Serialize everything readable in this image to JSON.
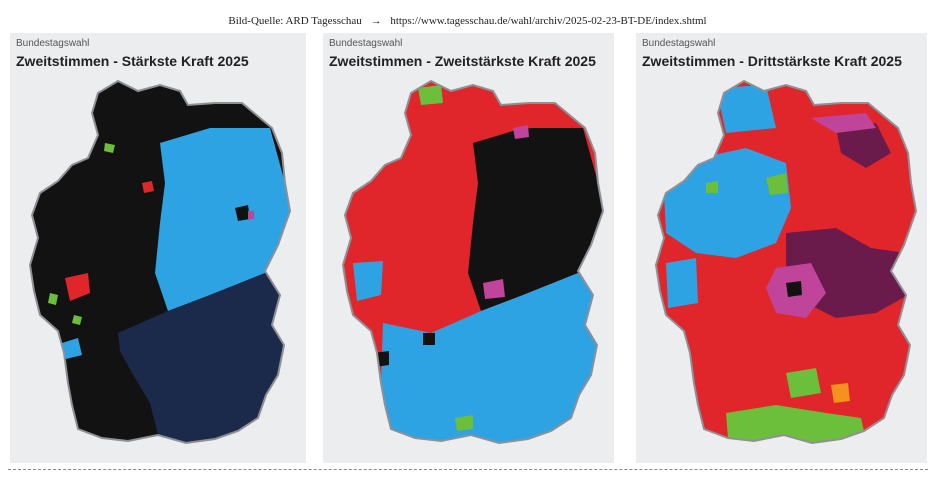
{
  "source": {
    "label": "Bild-Quelle: ARD Tagesschau",
    "arrow": "→",
    "url": "https://www.tagesschau.de/wahl/archiv/2025-02-23-BT-DE/index.shtml"
  },
  "panels": [
    {
      "eyebrow": "Bundestagswahl",
      "title": "Zweitstimmen - Stärkste Kraft 2025"
    },
    {
      "eyebrow": "Bundestagswahl",
      "title": "Zweitstimmen - Zweitstärkste Kraft 2025"
    },
    {
      "eyebrow": "Bundestagswahl",
      "title": "Zweitstimmen - Drittstärkste Kraft 2025"
    }
  ],
  "colors": {
    "panel_bg": "#ecedef",
    "black": "#121212",
    "light_blue": "#2ea3e3",
    "navy": "#1b2a4a",
    "red": "#e0262a",
    "green": "#6cbf3a",
    "magenta": "#c0449a",
    "purple": "#6b1a4c",
    "orange": "#f5911e",
    "border": "#ffffff"
  }
}
